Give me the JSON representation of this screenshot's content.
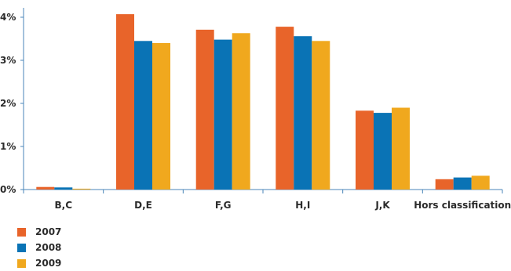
{
  "chart_data": {
    "type": "bar",
    "categories": [
      "B,C",
      "D,E",
      "F,G",
      "H,I",
      "J,K",
      "Hors classification"
    ],
    "series": [
      {
        "name": "2007",
        "color": "#e8642a",
        "values": [
          0.06,
          4.07,
          3.71,
          3.78,
          1.83,
          0.24
        ]
      },
      {
        "name": "2008",
        "color": "#0a73b5",
        "values": [
          0.05,
          3.45,
          3.48,
          3.56,
          1.78,
          0.28
        ]
      },
      {
        "name": "2009",
        "color": "#f0a81e",
        "values": [
          0.02,
          3.4,
          3.63,
          3.45,
          1.9,
          0.32
        ]
      }
    ],
    "y_ticks": [
      "0%",
      "1%",
      "2%",
      "3%",
      "4%"
    ],
    "ylim": [
      0,
      4.3
    ],
    "grid": false,
    "legend_position": "bottom-left"
  }
}
